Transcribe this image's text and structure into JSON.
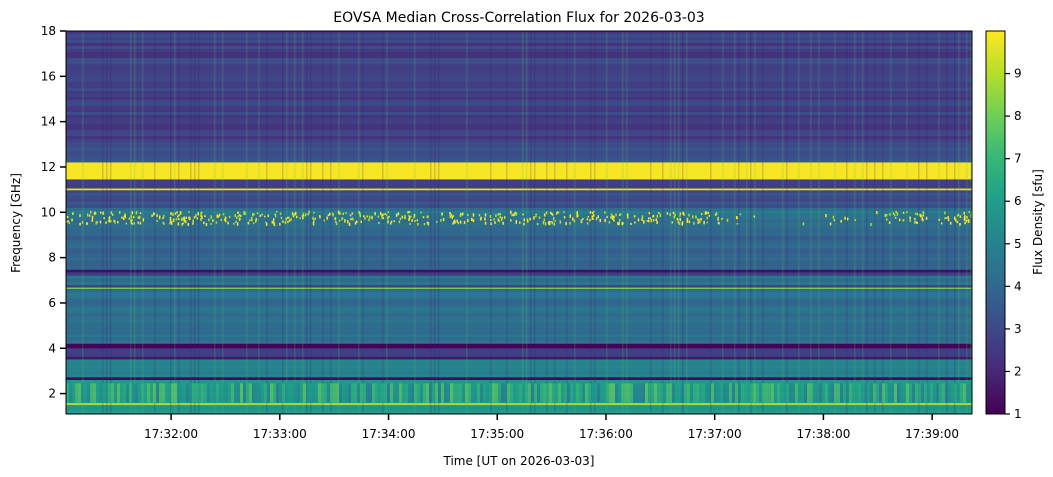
{
  "chart_data": {
    "type": "heatmap",
    "title": "EOVSA Median Cross-Correlation Flux for 2026-03-03",
    "xlabel": "Time [UT on 2026-03-03]",
    "ylabel": "Frequency [GHz]",
    "xlim": [
      "17:31:02",
      "17:39:22"
    ],
    "ylim": [
      1.1,
      18.0
    ],
    "x_ticks": [
      "17:32:00",
      "17:33:00",
      "17:34:00",
      "17:35:00",
      "17:36:00",
      "17:37:00",
      "17:38:00",
      "17:39:00"
    ],
    "y_ticks": [
      2,
      4,
      6,
      8,
      10,
      12,
      14,
      16,
      18
    ],
    "colorbar": {
      "label": "Flux Density [sfu]",
      "range": [
        1,
        10
      ],
      "ticks": [
        1,
        2,
        3,
        4,
        5,
        6,
        7,
        8,
        9
      ],
      "colormap": "viridis"
    },
    "grid": false,
    "base_level_by_frequency": [
      {
        "freq_ghz": [
          13.0,
          18.0
        ],
        "flux_sfu": 2.7
      },
      {
        "freq_ghz": [
          12.2,
          13.0
        ],
        "flux_sfu": 3.3
      },
      {
        "freq_ghz": [
          10.2,
          11.0
        ],
        "flux_sfu": 3.0
      },
      {
        "freq_ghz": [
          9.2,
          10.2
        ],
        "flux_sfu": 4.4
      },
      {
        "freq_ghz": [
          7.5,
          9.2
        ],
        "flux_sfu": 3.8
      },
      {
        "freq_ghz": [
          6.8,
          7.2
        ],
        "flux_sfu": 4.2
      },
      {
        "freq_ghz": [
          4.2,
          6.6
        ],
        "flux_sfu": 4.3
      },
      {
        "freq_ghz": [
          2.7,
          3.5
        ],
        "flux_sfu": 5.2
      },
      {
        "freq_ghz": [
          1.1,
          2.6
        ],
        "flux_sfu": 5.6
      }
    ],
    "horizontal_features": [
      {
        "freq_ghz": [
          11.45,
          12.2
        ],
        "flux_sfu": 9.9
      },
      {
        "freq_ghz": [
          10.97,
          11.05
        ],
        "flux_sfu": 9.5
      },
      {
        "freq_ghz": [
          7.35,
          7.45
        ],
        "flux_sfu": 1.3
      },
      {
        "freq_ghz": [
          6.62,
          6.68
        ],
        "flux_sfu": 8.0
      },
      {
        "freq_ghz": [
          4.0,
          4.2
        ],
        "flux_sfu": 1.1
      },
      {
        "freq_ghz": [
          3.52,
          3.62
        ],
        "flux_sfu": 1.5
      },
      {
        "freq_ghz": [
          2.6,
          2.72
        ],
        "flux_sfu": 1.2
      },
      {
        "freq_ghz": [
          1.5,
          1.58
        ],
        "flux_sfu": 9.0
      }
    ],
    "colors": {
      "viridis": [
        "#440154",
        "#482878",
        "#3e4989",
        "#31688e",
        "#26828e",
        "#1f9e89",
        "#35b779",
        "#6ece58",
        "#b5de2b",
        "#fde725"
      ]
    }
  }
}
